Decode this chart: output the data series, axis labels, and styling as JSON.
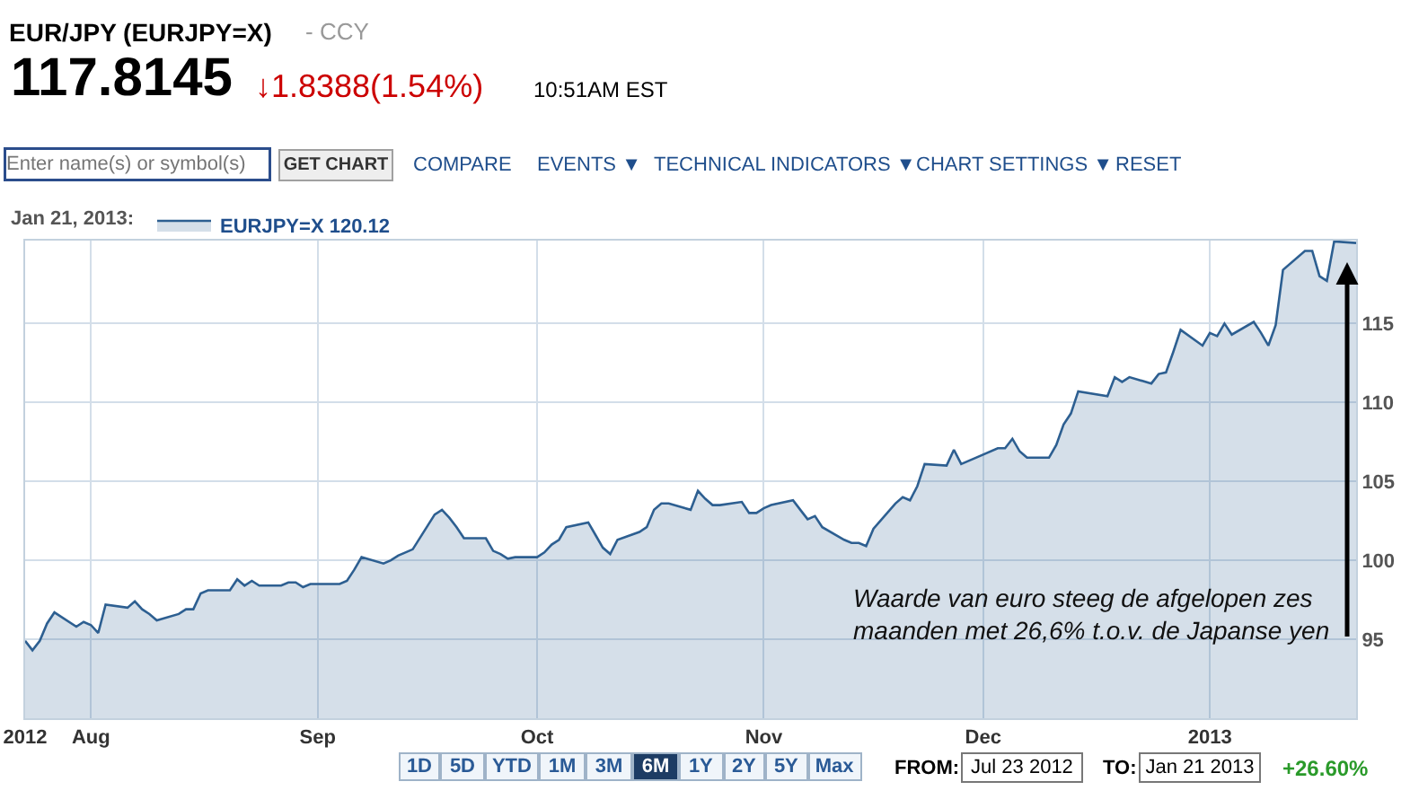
{
  "chart_data": {
    "type": "area",
    "title": "EUR/JPY (EURJPY=X)",
    "legend_title": "Jan 21, 2013:",
    "x": [
      "2012-07-23",
      "2012-07-24",
      "2012-07-25",
      "2012-07-26",
      "2012-07-27",
      "2012-07-30",
      "2012-07-31",
      "2012-08-01",
      "2012-08-02",
      "2012-08-03",
      "2012-08-06",
      "2012-08-07",
      "2012-08-08",
      "2012-08-09",
      "2012-08-10",
      "2012-08-13",
      "2012-08-14",
      "2012-08-15",
      "2012-08-16",
      "2012-08-17",
      "2012-08-20",
      "2012-08-21",
      "2012-08-22",
      "2012-08-23",
      "2012-08-24",
      "2012-08-27",
      "2012-08-28",
      "2012-08-29",
      "2012-08-30",
      "2012-08-31",
      "2012-09-03",
      "2012-09-04",
      "2012-09-05",
      "2012-09-06",
      "2012-09-07",
      "2012-09-10",
      "2012-09-11",
      "2012-09-12",
      "2012-09-13",
      "2012-09-14",
      "2012-09-17",
      "2012-09-18",
      "2012-09-19",
      "2012-09-20",
      "2012-09-21",
      "2012-09-24",
      "2012-09-25",
      "2012-09-26",
      "2012-09-27",
      "2012-09-28",
      "2012-10-01",
      "2012-10-02",
      "2012-10-03",
      "2012-10-04",
      "2012-10-05",
      "2012-10-08",
      "2012-10-09",
      "2012-10-10",
      "2012-10-11",
      "2012-10-12",
      "2012-10-15",
      "2012-10-16",
      "2012-10-17",
      "2012-10-18",
      "2012-10-19",
      "2012-10-22",
      "2012-10-23",
      "2012-10-24",
      "2012-10-25",
      "2012-10-26",
      "2012-10-29",
      "2012-10-30",
      "2012-10-31",
      "2012-11-01",
      "2012-11-02",
      "2012-11-05",
      "2012-11-06",
      "2012-11-07",
      "2012-11-08",
      "2012-11-09",
      "2012-11-12",
      "2012-11-13",
      "2012-11-14",
      "2012-11-15",
      "2012-11-16",
      "2012-11-19",
      "2012-11-20",
      "2012-11-21",
      "2012-11-22",
      "2012-11-23",
      "2012-11-26",
      "2012-11-27",
      "2012-11-28",
      "2012-11-29",
      "2012-11-30",
      "2012-12-03",
      "2012-12-04",
      "2012-12-05",
      "2012-12-06",
      "2012-12-07",
      "2012-12-10",
      "2012-12-11",
      "2012-12-12",
      "2012-12-13",
      "2012-12-14",
      "2012-12-18",
      "2012-12-19",
      "2012-12-20",
      "2012-12-21",
      "2012-12-24",
      "2012-12-25",
      "2012-12-26",
      "2012-12-27",
      "2012-12-28",
      "2012-12-31",
      "2013-01-01",
      "2013-01-02",
      "2013-01-03",
      "2013-01-04",
      "2013-01-07",
      "2013-01-08",
      "2013-01-09",
      "2013-01-10",
      "2013-01-11",
      "2013-01-14",
      "2013-01-15",
      "2013-01-16",
      "2013-01-17",
      "2013-01-18",
      "2013-01-21"
    ],
    "series": [
      {
        "name": "EURJPY=X 120.12",
        "color": "#2d5f91",
        "values": [
          94.9,
          94.3,
          94.9,
          96.0,
          96.7,
          95.8,
          96.1,
          95.9,
          95.4,
          97.2,
          97.0,
          97.4,
          96.9,
          96.6,
          96.2,
          96.6,
          96.9,
          96.9,
          97.9,
          98.1,
          98.1,
          98.8,
          98.4,
          98.7,
          98.4,
          98.4,
          98.6,
          98.6,
          98.3,
          98.5,
          98.5,
          98.5,
          98.7,
          99.4,
          100.2,
          99.8,
          100.0,
          100.3,
          100.5,
          100.7,
          102.9,
          103.2,
          102.7,
          102.1,
          101.4,
          101.4,
          100.6,
          100.4,
          100.1,
          100.2,
          100.2,
          100.5,
          101.0,
          101.3,
          102.1,
          102.4,
          101.6,
          100.8,
          100.4,
          101.3,
          101.8,
          102.1,
          103.2,
          103.6,
          103.6,
          103.2,
          104.4,
          103.9,
          103.5,
          103.5,
          103.7,
          103.0,
          103.0,
          103.3,
          103.5,
          103.8,
          103.2,
          102.6,
          102.8,
          102.1,
          101.3,
          101.1,
          101.1,
          100.9,
          102.0,
          103.6,
          104.0,
          103.8,
          104.7,
          106.1,
          106.0,
          107.0,
          106.1,
          106.3,
          106.5,
          107.1,
          107.1,
          107.7,
          106.9,
          106.5,
          106.5,
          107.3,
          108.6,
          109.3,
          110.7,
          110.4,
          111.6,
          111.3,
          111.6,
          111.2,
          111.8,
          111.9,
          113.2,
          114.6,
          113.6,
          114.4,
          114.2,
          115.0,
          114.3,
          115.1,
          114.4,
          113.6,
          114.9,
          118.4,
          119.6,
          119.6,
          118.0,
          117.7,
          120.2,
          120.1
        ]
      }
    ],
    "xlim": [
      "2012-07-23",
      "2013-01-21"
    ],
    "xticks": [
      {
        "value": "2012-07-23",
        "label": "2012"
      },
      {
        "value": "2012-08-01",
        "label": "Aug"
      },
      {
        "value": "2012-09-01",
        "label": "Sep"
      },
      {
        "value": "2012-10-01",
        "label": "Oct"
      },
      {
        "value": "2012-11-01",
        "label": "Nov"
      },
      {
        "value": "2012-12-01",
        "label": "Dec"
      },
      {
        "value": "2013-01-01",
        "label": "2013"
      }
    ],
    "ylim": [
      90,
      120.25
    ],
    "yticks": [
      95,
      100,
      105,
      110,
      115
    ],
    "grid": true,
    "legend": "top left",
    "annotations": [
      "- CCY",
      "117.8145",
      "↓1.8388(1.54%)",
      "10:51AM EST",
      "Enter name(s) or symbol(s)",
      "GET CHART",
      "COMPARE",
      "EVENTS ▼",
      "TECHNICAL INDICATORS ▼",
      "CHART SETTINGS ▼",
      "RESET",
      "1D",
      "5D",
      "YTD",
      "1M",
      "3M",
      "6M",
      "1Y",
      "2Y",
      "5Y",
      "Max",
      "FROM:",
      "Jul 23 2012",
      "TO:",
      "Jan 21 2013",
      "+26.60%",
      "Waarde van euro steeg de afgelopen zes\nmaanden met 26,6% t.o.v. de Japanse yen"
    ]
  }
}
